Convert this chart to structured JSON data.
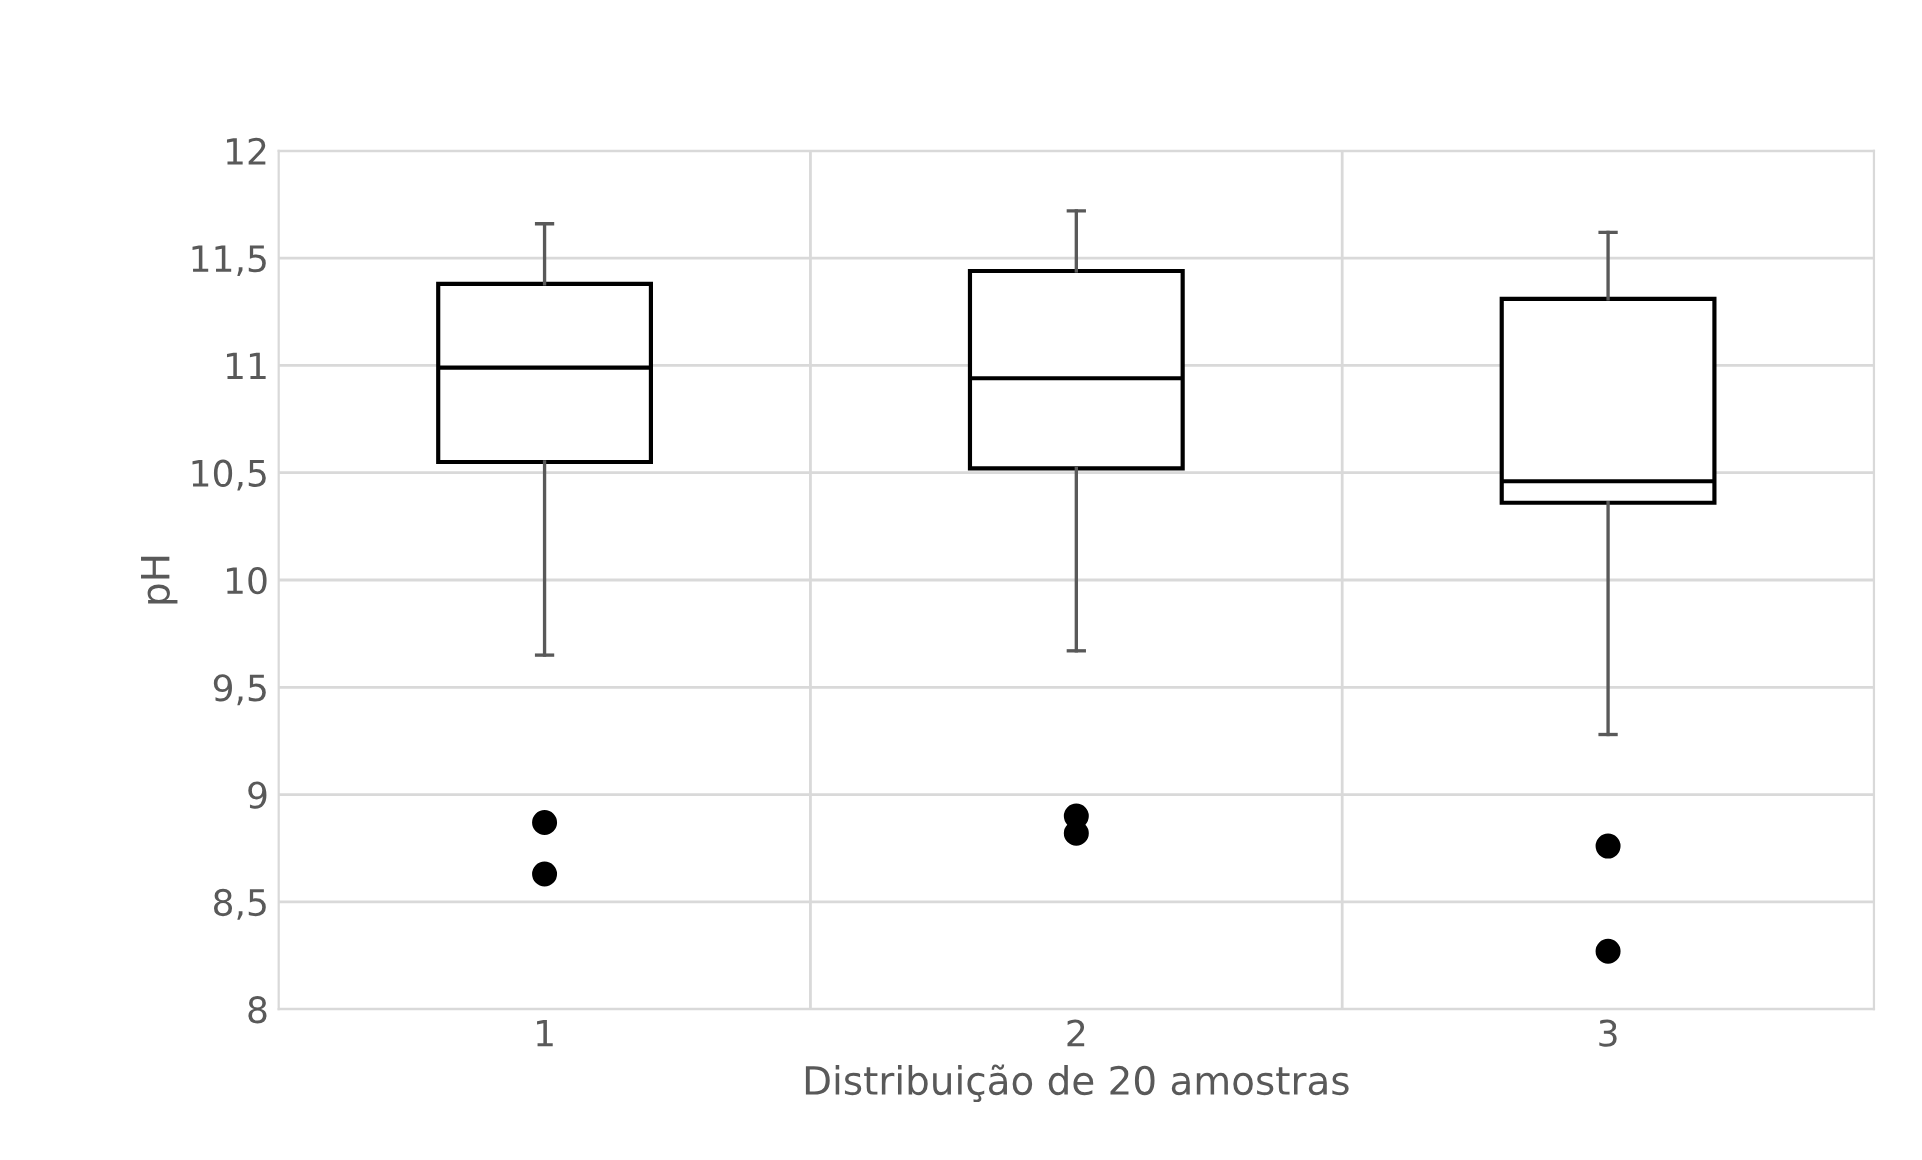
{
  "chart_data": {
    "type": "box",
    "xlabel": "Distribuição de 20 amostras",
    "ylabel": "pH",
    "categories": [
      "1",
      "2",
      "3"
    ],
    "boxes": [
      {
        "low": 9.65,
        "q1": 10.55,
        "median": 10.99,
        "q3": 11.38,
        "high": 11.66,
        "outliers": [
          8.87,
          8.63
        ]
      },
      {
        "low": 9.67,
        "q1": 10.52,
        "median": 10.94,
        "q3": 11.44,
        "high": 11.72,
        "outliers": [
          8.9,
          8.82
        ]
      },
      {
        "low": 9.28,
        "q1": 10.36,
        "median": 10.46,
        "q3": 11.31,
        "high": 11.62,
        "outliers": [
          8.76,
          8.27
        ]
      }
    ],
    "ylim": [
      8,
      12
    ],
    "yticks": [
      {
        "value": 8,
        "label": "8"
      },
      {
        "value": 8.5,
        "label": "8,5"
      },
      {
        "value": 9,
        "label": "9"
      },
      {
        "value": 9.5,
        "label": "9,5"
      },
      {
        "value": 10,
        "label": "10"
      },
      {
        "value": 10.5,
        "label": "10,5"
      },
      {
        "value": 11,
        "label": "11"
      },
      {
        "value": 11.5,
        "label": "11,5"
      },
      {
        "value": 12,
        "label": "12"
      }
    ],
    "grid": true
  }
}
